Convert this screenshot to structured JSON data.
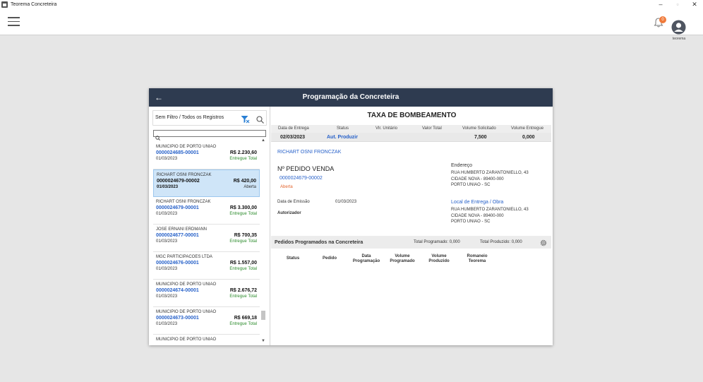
{
  "window": {
    "title": "Teorema Concreteira",
    "minimize": "–",
    "maximize": "▫",
    "close": "✕"
  },
  "header": {
    "notification_count": "0",
    "user_label": "teorema"
  },
  "dialog": {
    "title": "Programação da Concreteira",
    "back": "←",
    "filter_text": "Sem Filtro / Todos os Registros",
    "search_value": "",
    "list": [
      {
        "client": "MUNICIPIO DE PORTO UNIAO",
        "order": "0000024685-00001",
        "date": "01/03/2023",
        "amount": "R$ 2.230,60",
        "status": "Entregue Total"
      },
      {
        "client": "RICHART OSNI FRONCZAK",
        "order": "0000024679-00002",
        "date": "01/03/2023",
        "amount": "R$ 420,00",
        "status": "Aberta"
      },
      {
        "client": "RICHART OSNI FRONCZAK",
        "order": "0000024679-00001",
        "date": "01/03/2023",
        "amount": "R$ 3.300,00",
        "status": "Entregue Total"
      },
      {
        "client": "JOSE ERNANI ERDMANN",
        "order": "0000024677-00001",
        "date": "01/03/2023",
        "amount": "R$ 700,35",
        "status": "Entregue Total"
      },
      {
        "client": "MGC PARTICIPACOES LTDA",
        "order": "0000024676-00001",
        "date": "01/03/2023",
        "amount": "R$ 1.557,00",
        "status": "Entregue Total"
      },
      {
        "client": "MUNICIPIO DE PORTO UNIAO",
        "order": "0000024674-00001",
        "date": "01/03/2023",
        "amount": "R$ 2.676,72",
        "status": "Entregue Total"
      },
      {
        "client": "MUNICIPIO DE PORTO UNIAO",
        "order": "0000024673-00001",
        "date": "01/03/2023",
        "amount": "R$ 669,18",
        "status": "Entregue Total"
      },
      {
        "client": "MUNICIPIO DE PORTO UNIAO",
        "order": "",
        "date": "",
        "amount": "",
        "status": ""
      }
    ],
    "detail": {
      "title": "TAXA DE BOMBEAMENTO",
      "columns": [
        "Data de Entrega",
        "Status",
        "Vlr. Unitário",
        "Valor Total",
        "Volume Solicitado",
        "Volume Entregue"
      ],
      "row": {
        "date": "02/03/2023",
        "status": "Aut. Produzir",
        "unit": "",
        "total": "",
        "requested": "7,500",
        "delivered": "0,000"
      },
      "client": "RICHART OSNI FRONCZAK",
      "order_label": "Nº PEDIDO VENDA",
      "order_number": "0000024679-00002",
      "order_status": "Aberta",
      "emission_label": "Data de Emissão",
      "emission_date": "01/03/2023",
      "authorizer_label": "Autorizador",
      "address_label": "Endereço",
      "address": [
        "RUA HUMBERTO ZARANTONIELLO, 43",
        "CIDADE NOVA - 89400-000",
        "PORTO UNIAO - SC"
      ],
      "delivery_label": "Local de Entrega / Obra",
      "delivery_address": [
        "RUA HUMBERTO ZARANTONIELLO, 43",
        "CIDADE NOVA - 89400-000",
        "PORTO UNIAO - SC"
      ]
    },
    "schedule": {
      "title": "Pedidos Programados na Concreteira",
      "total_programmed": "Total Programado: 0,000",
      "total_produced": "Total Produzido: 0,000",
      "columns": [
        "Status",
        "Pedido",
        "Data Programação",
        "Volume Programado",
        "Volume Produzido",
        "Romaneio Teorema"
      ]
    }
  }
}
